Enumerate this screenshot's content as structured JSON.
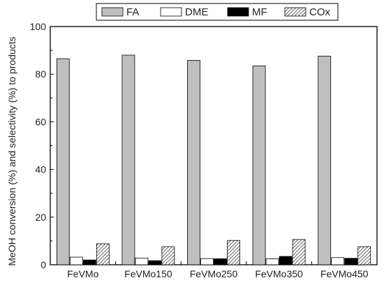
{
  "chart_data": {
    "type": "bar",
    "title": "",
    "xlabel": "",
    "ylabel": "MeOH conversion (%) and selectivity (%) to products",
    "ylim": [
      0,
      100
    ],
    "yticks": [
      0,
      20,
      40,
      60,
      80,
      100
    ],
    "grid": false,
    "legend_position": "top",
    "categories": [
      "FeVMo",
      "FeVMo150",
      "FeVMo250",
      "FeVMo350",
      "FeVMo450"
    ],
    "series": [
      {
        "name": "FA",
        "fill": "#bfbfbf",
        "pattern": "solid",
        "values": [
          86.5,
          88.0,
          85.8,
          83.5,
          87.6
        ]
      },
      {
        "name": "DME",
        "fill": "#ffffff",
        "pattern": "solid",
        "values": [
          3.2,
          2.8,
          2.6,
          2.5,
          3.0
        ]
      },
      {
        "name": "MF",
        "fill": "#000000",
        "pattern": "solid",
        "values": [
          2.0,
          1.7,
          2.5,
          3.5,
          2.7
        ]
      },
      {
        "name": "COx",
        "fill": "#ffffff",
        "pattern": "hatch",
        "values": [
          8.8,
          7.6,
          10.2,
          10.6,
          7.6
        ]
      }
    ]
  }
}
